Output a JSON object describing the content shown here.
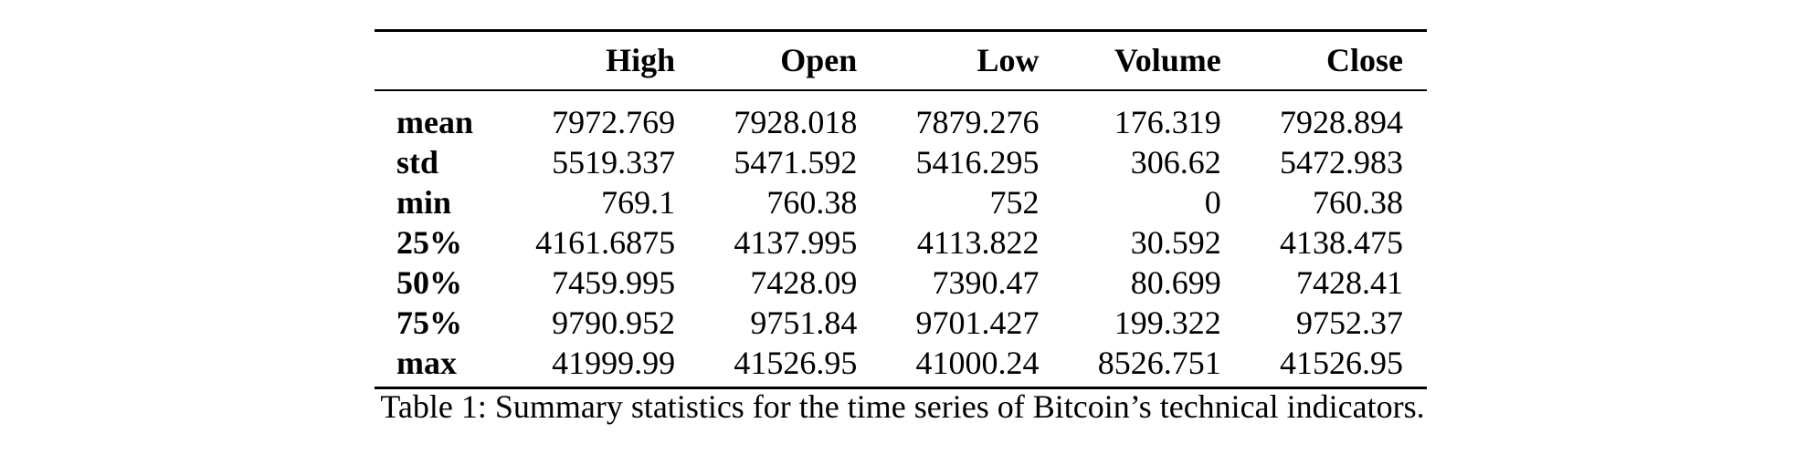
{
  "table": {
    "columns": [
      "High",
      "Open",
      "Low",
      "Volume",
      "Close"
    ],
    "rows": [
      {
        "label": "mean",
        "values": [
          "7972.769",
          "7928.018",
          "7879.276",
          "176.319",
          "7928.894"
        ]
      },
      {
        "label": "std",
        "values": [
          "5519.337",
          "5471.592",
          "5416.295",
          "306.62",
          "5472.983"
        ]
      },
      {
        "label": "min",
        "values": [
          "769.1",
          "760.38",
          "752",
          "0",
          "760.38"
        ]
      },
      {
        "label": "25%",
        "values": [
          "4161.6875",
          "4137.995",
          "4113.822",
          "30.592",
          "4138.475"
        ]
      },
      {
        "label": "50%",
        "values": [
          "7459.995",
          "7428.09",
          "7390.47",
          "80.699",
          "7428.41"
        ]
      },
      {
        "label": "75%",
        "values": [
          "9790.952",
          "9751.84",
          "9701.427",
          "199.322",
          "9752.37"
        ]
      },
      {
        "label": "max",
        "values": [
          "41999.99",
          "41526.95",
          "41000.24",
          "8526.751",
          "41526.95"
        ]
      }
    ]
  },
  "caption": "Table 1: Summary statistics for the time series of Bitcoin’s technical indicators."
}
